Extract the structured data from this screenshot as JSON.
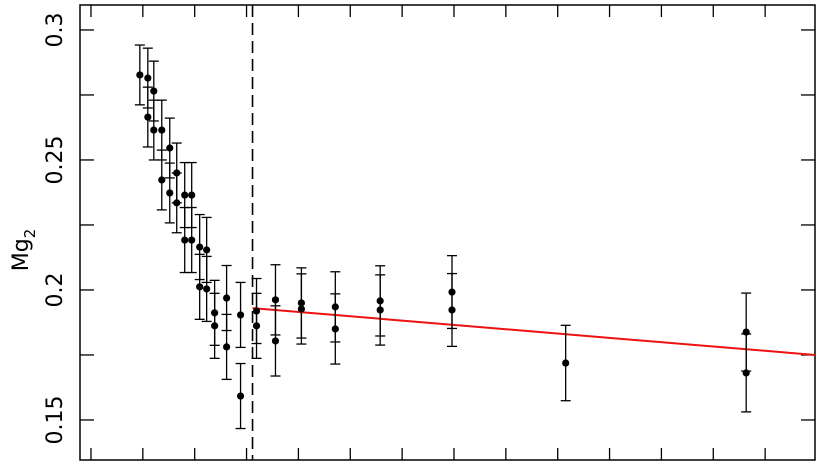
{
  "chart_data": {
    "type": "scatter",
    "ylabel": "Mg",
    "ylabel_sub": "2",
    "xlim": [
      0,
      14.74
    ],
    "xticks": [
      0.22,
      1.26,
      2.3,
      3.34,
      4.38,
      5.42,
      6.46,
      7.5,
      8.54,
      9.58,
      10.62,
      11.66,
      12.7,
      13.74
    ],
    "ylim": [
      0.1346,
      0.3096
    ],
    "yticks": [
      0.15,
      0.2,
      0.25,
      0.3
    ],
    "yminorticks": [
      0.175,
      0.225,
      0.275
    ],
    "vline": 3.46,
    "fit": {
      "color": "#ee1111",
      "x": [
        3.46,
        14.74
      ],
      "y": [
        0.193,
        0.175
      ]
    },
    "series": [
      {
        "color": "#000000",
        "x": [
          1.2,
          1.36,
          1.36,
          1.48,
          1.48,
          1.64,
          1.64,
          1.8,
          1.8,
          1.94,
          1.94,
          2.1,
          2.1,
          2.24,
          2.24,
          2.4,
          2.54,
          2.4,
          2.54,
          2.7,
          2.7,
          2.94,
          2.94,
          3.22,
          3.22,
          3.54,
          3.54,
          3.92,
          3.92,
          4.44,
          4.44,
          5.12,
          5.12,
          6.02,
          6.02,
          7.46,
          7.46,
          9.74,
          13.36,
          13.36
        ],
        "values": [
          0.2827,
          0.2815,
          0.2665,
          0.2765,
          0.2615,
          0.2615,
          0.2423,
          0.2546,
          0.2373,
          0.245,
          0.2335,
          0.2365,
          0.2192,
          0.2365,
          0.2192,
          0.2165,
          0.2154,
          0.2012,
          0.2004,
          0.1912,
          0.1862,
          0.1969,
          0.1781,
          0.1904,
          0.1592,
          0.1919,
          0.1862,
          0.1962,
          0.1804,
          0.195,
          0.1927,
          0.1935,
          0.185,
          0.1958,
          0.1923,
          0.1992,
          0.1923,
          0.1719,
          0.1838,
          0.1681
        ],
        "errors": [
          0.0115,
          0.0115,
          0.0115,
          0.0115,
          0.0115,
          0.0115,
          0.0115,
          0.0115,
          0.0115,
          0.0115,
          0.0115,
          0.0125,
          0.0125,
          0.0125,
          0.0125,
          0.0125,
          0.0125,
          0.0125,
          0.0125,
          0.0125,
          0.0125,
          0.0125,
          0.0125,
          0.0125,
          0.0125,
          0.0125,
          0.0125,
          0.0135,
          0.0135,
          0.0135,
          0.0135,
          0.0135,
          0.0135,
          0.0135,
          0.0135,
          0.014,
          0.014,
          0.0145,
          0.015,
          0.015
        ]
      }
    ]
  }
}
